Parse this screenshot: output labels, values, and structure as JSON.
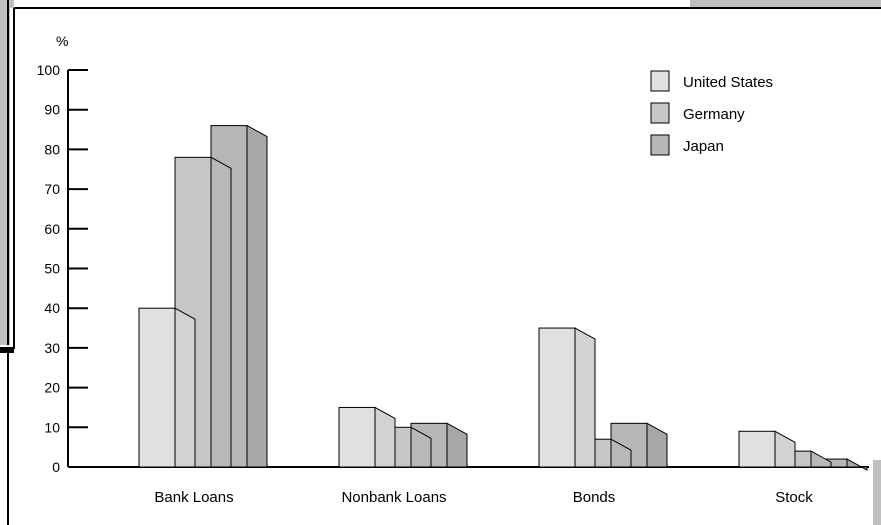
{
  "chart_data": {
    "type": "bar",
    "unit_label": "%",
    "categories": [
      "Bank Loans",
      "Nonbank Loans",
      "Bonds",
      "Stock"
    ],
    "series": [
      {
        "name": "United States",
        "values": [
          40,
          15,
          35,
          9
        ],
        "color": "#e0e0e0",
        "side_color": "#d2d2d2"
      },
      {
        "name": "Germany",
        "values": [
          78,
          10,
          7,
          4
        ],
        "color": "#c6c6c6",
        "side_color": "#b8b8b8"
      },
      {
        "name": "Japan",
        "values": [
          86,
          11,
          11,
          2
        ],
        "color": "#b6b6b6",
        "side_color": "#a8a8a8"
      }
    ],
    "ylim": [
      0,
      100
    ],
    "yticks": [
      0,
      10,
      20,
      30,
      40,
      50,
      60,
      70,
      80,
      90,
      100
    ],
    "legend_position": "top-right",
    "grid": false
  }
}
